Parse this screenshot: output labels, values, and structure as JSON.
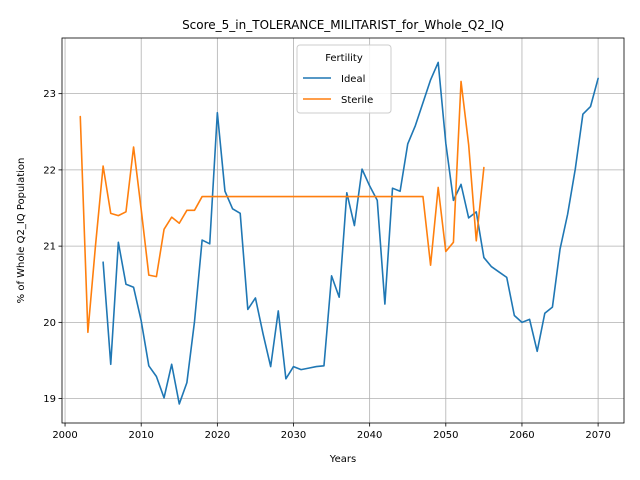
{
  "chart_data": {
    "type": "line",
    "title": "Score_5_in_TOLERANCE_MILITARIST_for_Whole_Q2_IQ",
    "xlabel": "Years",
    "ylabel": "% of Whole Q2_IQ Population",
    "xlim": [
      1999.6,
      2073.4
    ],
    "ylim": [
      18.68,
      23.73
    ],
    "xticks": [
      2000,
      2010,
      2020,
      2030,
      2040,
      2050,
      2060,
      2070
    ],
    "yticks": [
      19,
      20,
      21,
      22,
      23
    ],
    "grid": true,
    "legend": {
      "title": "Fertility",
      "placement": "upper center"
    },
    "series": [
      {
        "name": "Ideal",
        "color": "#1f77b4",
        "x": [
          2005,
          2006,
          2007,
          2008,
          2009,
          2010,
          2011,
          2012,
          2013,
          2014,
          2015,
          2016,
          2017,
          2018,
          2019,
          2020,
          2021,
          2022,
          2023,
          2024,
          2025,
          2026,
          2027,
          2028,
          2029,
          2030,
          2031,
          2032,
          2033,
          2034,
          2035,
          2036,
          2037,
          2038,
          2039,
          2040,
          2041,
          2042,
          2043,
          2044,
          2045,
          2046,
          2047,
          2048,
          2049,
          2050,
          2051,
          2052,
          2053,
          2054,
          2055,
          2056,
          2057,
          2058,
          2059,
          2060,
          2061,
          2062,
          2063,
          2064,
          2065,
          2066,
          2067,
          2068,
          2069,
          2070
        ],
        "values": [
          20.79,
          19.45,
          21.05,
          20.5,
          20.46,
          20.02,
          19.43,
          19.29,
          19.01,
          19.45,
          18.93,
          19.21,
          20.01,
          21.08,
          21.03,
          22.75,
          21.72,
          21.49,
          21.43,
          20.17,
          20.32,
          19.85,
          19.42,
          20.15,
          19.26,
          19.42,
          19.38,
          19.4,
          19.42,
          19.43,
          20.61,
          20.33,
          21.7,
          21.27,
          22.01,
          21.79,
          21.6,
          20.24,
          21.76,
          21.72,
          22.34,
          22.58,
          22.88,
          23.18,
          23.41,
          22.35,
          21.6,
          21.81,
          21.37,
          21.45,
          20.85,
          20.73,
          20.66,
          20.59,
          20.09,
          20.0,
          20.04,
          19.62,
          20.12,
          20.2,
          20.96,
          21.42,
          22.01,
          22.73,
          22.83,
          23.2
        ]
      },
      {
        "name": "Sterile",
        "color": "#ff7f0e",
        "x": [
          2002,
          2003,
          2004,
          2005,
          2006,
          2007,
          2008,
          2009,
          2010,
          2011,
          2012,
          2013,
          2014,
          2015,
          2016,
          2017,
          2018,
          2019,
          2020,
          2021,
          2022,
          2023,
          2024,
          2025,
          2026,
          2027,
          2028,
          2029,
          2030,
          2031,
          2032,
          2033,
          2034,
          2035,
          2036,
          2037,
          2038,
          2039,
          2040,
          2041,
          2042,
          2043,
          2044,
          2045,
          2046,
          2047,
          2048,
          2049,
          2050,
          2051,
          2052,
          2053,
          2054,
          2055
        ],
        "values": [
          22.7,
          19.87,
          21.01,
          22.05,
          21.43,
          21.4,
          21.45,
          22.3,
          21.48,
          20.62,
          20.6,
          21.22,
          21.38,
          21.3,
          21.47,
          21.47,
          21.65,
          21.65,
          21.65,
          21.65,
          21.65,
          21.65,
          21.65,
          21.65,
          21.65,
          21.65,
          21.65,
          21.65,
          21.65,
          21.65,
          21.65,
          21.65,
          21.65,
          21.65,
          21.65,
          21.65,
          21.65,
          21.65,
          21.65,
          21.65,
          21.65,
          21.65,
          21.65,
          21.65,
          21.65,
          21.65,
          20.75,
          21.77,
          20.93,
          21.05,
          23.16,
          22.33,
          21.07,
          22.03
        ]
      }
    ]
  }
}
